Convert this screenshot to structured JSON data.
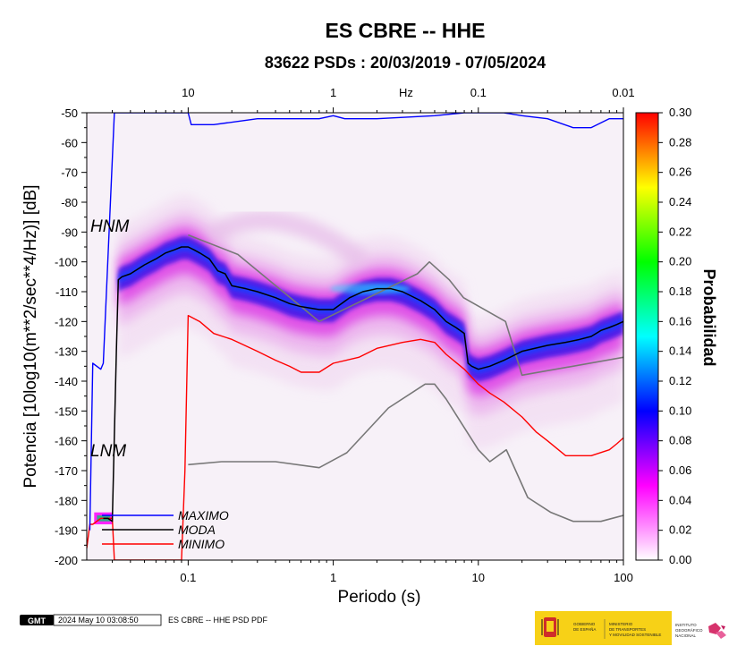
{
  "chart_data": {
    "type": "heatmap",
    "title": "ES CBRE -- HHE",
    "subtitle": "83622 PSDs : 20/03/2019 - 07/05/2024",
    "xlabel": "Periodo (s)",
    "ylabel": "Potencia [10log10(m**2/sec**4/Hz)] [dB]",
    "x_scale": "log",
    "xlim": [
      0.02,
      100
    ],
    "ylim": [
      -200,
      -50
    ],
    "x_ticks": [
      {
        "value": 0.1,
        "label": "0.1"
      },
      {
        "value": 1,
        "label": "1"
      },
      {
        "value": 10,
        "label": "10"
      },
      {
        "value": 100,
        "label": "100"
      }
    ],
    "y_ticks": [
      -50,
      -60,
      -70,
      -80,
      -90,
      -100,
      -110,
      -120,
      -130,
      -140,
      -150,
      -160,
      -170,
      -180,
      -190,
      -200
    ],
    "top_axis": {
      "unit_label": "Hz",
      "ticks": [
        {
          "value": 0.1,
          "label": "10"
        },
        {
          "value": 1,
          "label": "1"
        },
        {
          "value": 10,
          "label": "0.1"
        },
        {
          "value": 100,
          "label": "0.01"
        }
      ]
    },
    "colorbar": {
      "label": "Probabilidad",
      "range": [
        0,
        0.3
      ],
      "ticks": [
        "0.00",
        "0.02",
        "0.04",
        "0.06",
        "0.08",
        "0.10",
        "0.12",
        "0.14",
        "0.16",
        "0.18",
        "0.20",
        "0.22",
        "0.24",
        "0.26",
        "0.28",
        "0.30"
      ],
      "colors": [
        "#ffffff",
        "#ff00ff",
        "#0000ff",
        "#00ffff",
        "#00ff00",
        "#ffff00",
        "#ff0000"
      ]
    },
    "curve_labels": [
      "HNM",
      "LNM"
    ],
    "series": [
      {
        "name": "MAXIMO",
        "color": "#0000ff",
        "x": [
          0.021,
          0.022,
          0.025,
          0.026,
          0.031,
          0.1,
          0.105,
          0.15,
          0.3,
          0.8,
          1,
          1.2,
          2,
          5,
          8,
          15,
          20,
          30,
          45,
          60,
          80,
          100
        ],
        "y": [
          -190,
          -134,
          -136,
          -134,
          -50,
          -50,
          -54,
          -54,
          -52,
          -52,
          -51,
          -52,
          -52,
          -51,
          -50,
          -50,
          -51,
          -52,
          -55,
          -55,
          -52,
          -52
        ]
      },
      {
        "name": "MODA",
        "color": "#000000",
        "x": [
          0.026,
          0.028,
          0.03,
          0.032,
          0.033,
          0.035,
          0.04,
          0.05,
          0.06,
          0.07,
          0.08,
          0.09,
          0.1,
          0.11,
          0.12,
          0.14,
          0.16,
          0.18,
          0.2,
          0.25,
          0.3,
          0.4,
          0.5,
          0.6,
          0.8,
          1,
          1.3,
          1.6,
          2,
          2.5,
          3,
          4,
          5,
          6,
          7,
          8,
          8.5,
          9,
          10,
          12,
          15,
          20,
          30,
          40,
          50,
          60,
          70,
          80,
          90,
          100
        ],
        "y": [
          -186,
          -186,
          -187,
          -130,
          -106,
          -105,
          -104,
          -101,
          -99,
          -97,
          -96,
          -95,
          -95,
          -96,
          -97,
          -99,
          -103,
          -104,
          -108,
          -109,
          -110,
          -112,
          -114,
          -115,
          -116,
          -116,
          -112,
          -110,
          -109,
          -109,
          -110,
          -113,
          -116,
          -120,
          -122,
          -124,
          -134,
          -135,
          -136,
          -135,
          -133,
          -130,
          -128,
          -127,
          -126,
          -125,
          -123,
          -122,
          -121,
          -120
        ]
      },
      {
        "name": "MINIMO",
        "color": "#ff0000",
        "x": [
          0.02,
          0.021,
          0.022,
          0.025,
          0.03,
          0.031,
          0.032,
          0.035,
          0.05,
          0.08,
          0.09,
          0.095,
          0.1,
          0.12,
          0.15,
          0.2,
          0.3,
          0.4,
          0.5,
          0.6,
          0.8,
          1,
          1.5,
          2,
          3,
          4,
          5,
          6,
          8,
          10,
          12,
          15,
          20,
          25,
          30,
          40,
          50,
          60,
          80,
          90,
          100
        ],
        "y": [
          -196,
          -188,
          -188,
          -186,
          -186,
          -200,
          -200,
          -200,
          -200,
          -200,
          -200,
          -170,
          -118,
          -120,
          -124,
          -126,
          -130,
          -133,
          -135,
          -137,
          -137,
          -134,
          -132,
          -129,
          -127,
          -126,
          -127,
          -131,
          -136,
          -141,
          -144,
          -147,
          -152,
          -157,
          -160,
          -165,
          -165,
          -165,
          -163,
          -161,
          -159
        ]
      }
    ],
    "models": [
      {
        "name": "HNM",
        "color": "#777777",
        "x": [
          0.1,
          0.22,
          0.8,
          3.8,
          4.6,
          6.3,
          7.9,
          15.4,
          20,
          100
        ],
        "y": [
          -91,
          -97.5,
          -120,
          -104,
          -100,
          -106,
          -112,
          -120,
          -138,
          -132
        ]
      },
      {
        "name": "LNM",
        "color": "#777777",
        "x": [
          0.1,
          0.17,
          0.4,
          0.8,
          1.24,
          2.4,
          4.3,
          5,
          6,
          10,
          12,
          15.6,
          21.9,
          31.6,
          45,
          70,
          100
        ],
        "y": [
          -168,
          -167,
          -167,
          -169,
          -164,
          -149,
          -141,
          -141,
          -146,
          -163,
          -167,
          -163,
          -179,
          -184,
          -187,
          -187,
          -185
        ]
      }
    ]
  },
  "footer": {
    "logo_text": "GMT",
    "timestamp": "2024 May 10 03:08:50",
    "caption": "ES CBRE -- HHE PSD PDF",
    "logos": {
      "gov": [
        "GOBIERNO",
        "DE ESPAÑA"
      ],
      "ministry": [
        "MINISTERIO",
        "DE TRANSPORTES",
        "Y MOVILIDAD SOSTENIBLE"
      ],
      "institute": [
        "INSTITUTO",
        "GEOGRÁFICO",
        "NACIONAL"
      ]
    }
  }
}
